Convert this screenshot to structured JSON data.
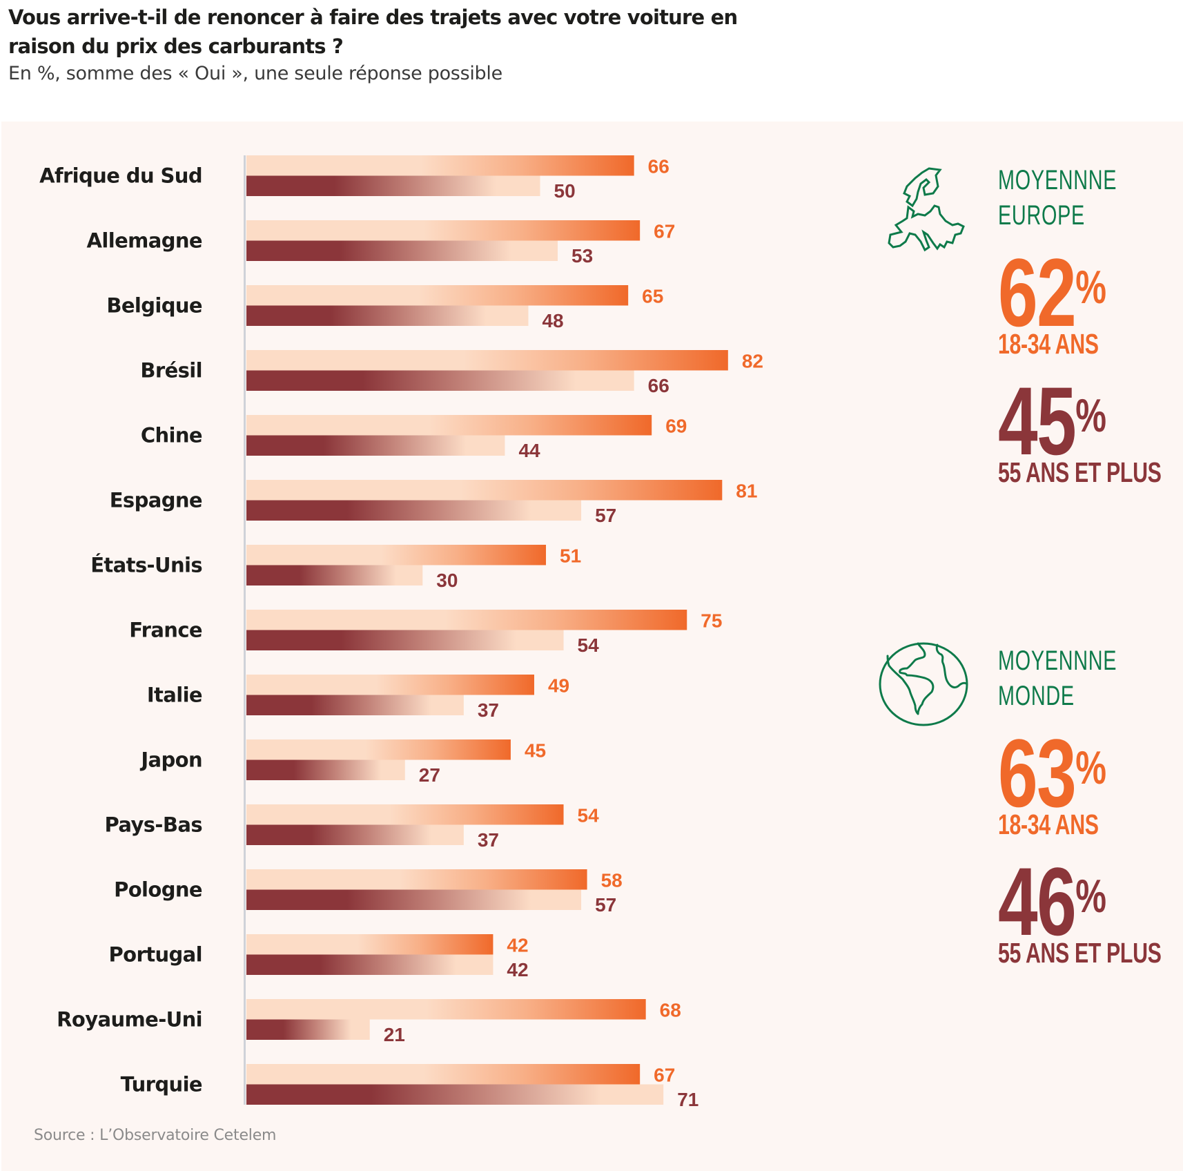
{
  "header": {
    "title": "Vous arrive-t-il de renoncer à faire des trajets avec votre voiture en raison du prix des carburants ?",
    "subtitle": "En %, somme des « Oui », une seule réponse possible"
  },
  "source": "Source : L’Observatoire Cetelem",
  "colors": {
    "young": "#f0692a",
    "old": "#8b363a",
    "peach": "#fcdcc6",
    "panel_bg": "#fdf6f3",
    "accent_green": "#0e7a4a",
    "axis": "#cfd2d8"
  },
  "chart_data": {
    "type": "bar",
    "orientation": "horizontal",
    "title": "Vous arrive-t-il de renoncer à faire des trajets avec votre voiture en raison du prix des carburants ?",
    "subtitle": "En %, somme des « Oui », une seule réponse possible",
    "xlabel": "",
    "ylabel": "",
    "xlim": [
      0,
      100
    ],
    "grid": false,
    "legend": "none",
    "categories": [
      "Afrique du Sud",
      "Allemagne",
      "Belgique",
      "Brésil",
      "Chine",
      "Espagne",
      "États-Unis",
      "France",
      "Italie",
      "Japon",
      "Pays-Bas",
      "Pologne",
      "Portugal",
      "Royaume-Uni",
      "Turquie"
    ],
    "series": [
      {
        "name": "18-34 ans",
        "color": "#f0692a",
        "values": [
          66,
          67,
          65,
          82,
          69,
          81,
          51,
          75,
          49,
          45,
          54,
          58,
          42,
          68,
          67
        ]
      },
      {
        "name": "55 ans et plus",
        "color": "#8b363a",
        "values": [
          50,
          53,
          48,
          66,
          44,
          57,
          30,
          54,
          37,
          27,
          37,
          57,
          42,
          21,
          71
        ]
      }
    ]
  },
  "averages": [
    {
      "icon": "europe-map-icon",
      "label_line1": "MOYENNNE",
      "label_line2": "EUROPE",
      "young_value": "62",
      "young_label": "18-34 ANS",
      "old_value": "45",
      "old_label": "55 ANS ET PLUS",
      "percent_sign": "%"
    },
    {
      "icon": "globe-icon",
      "label_line1": "MOYENNNE",
      "label_line2": "MONDE",
      "young_value": "63",
      "young_label": "18-34 ANS",
      "old_value": "46",
      "old_label": "55 ANS ET PLUS",
      "percent_sign": "%"
    }
  ]
}
